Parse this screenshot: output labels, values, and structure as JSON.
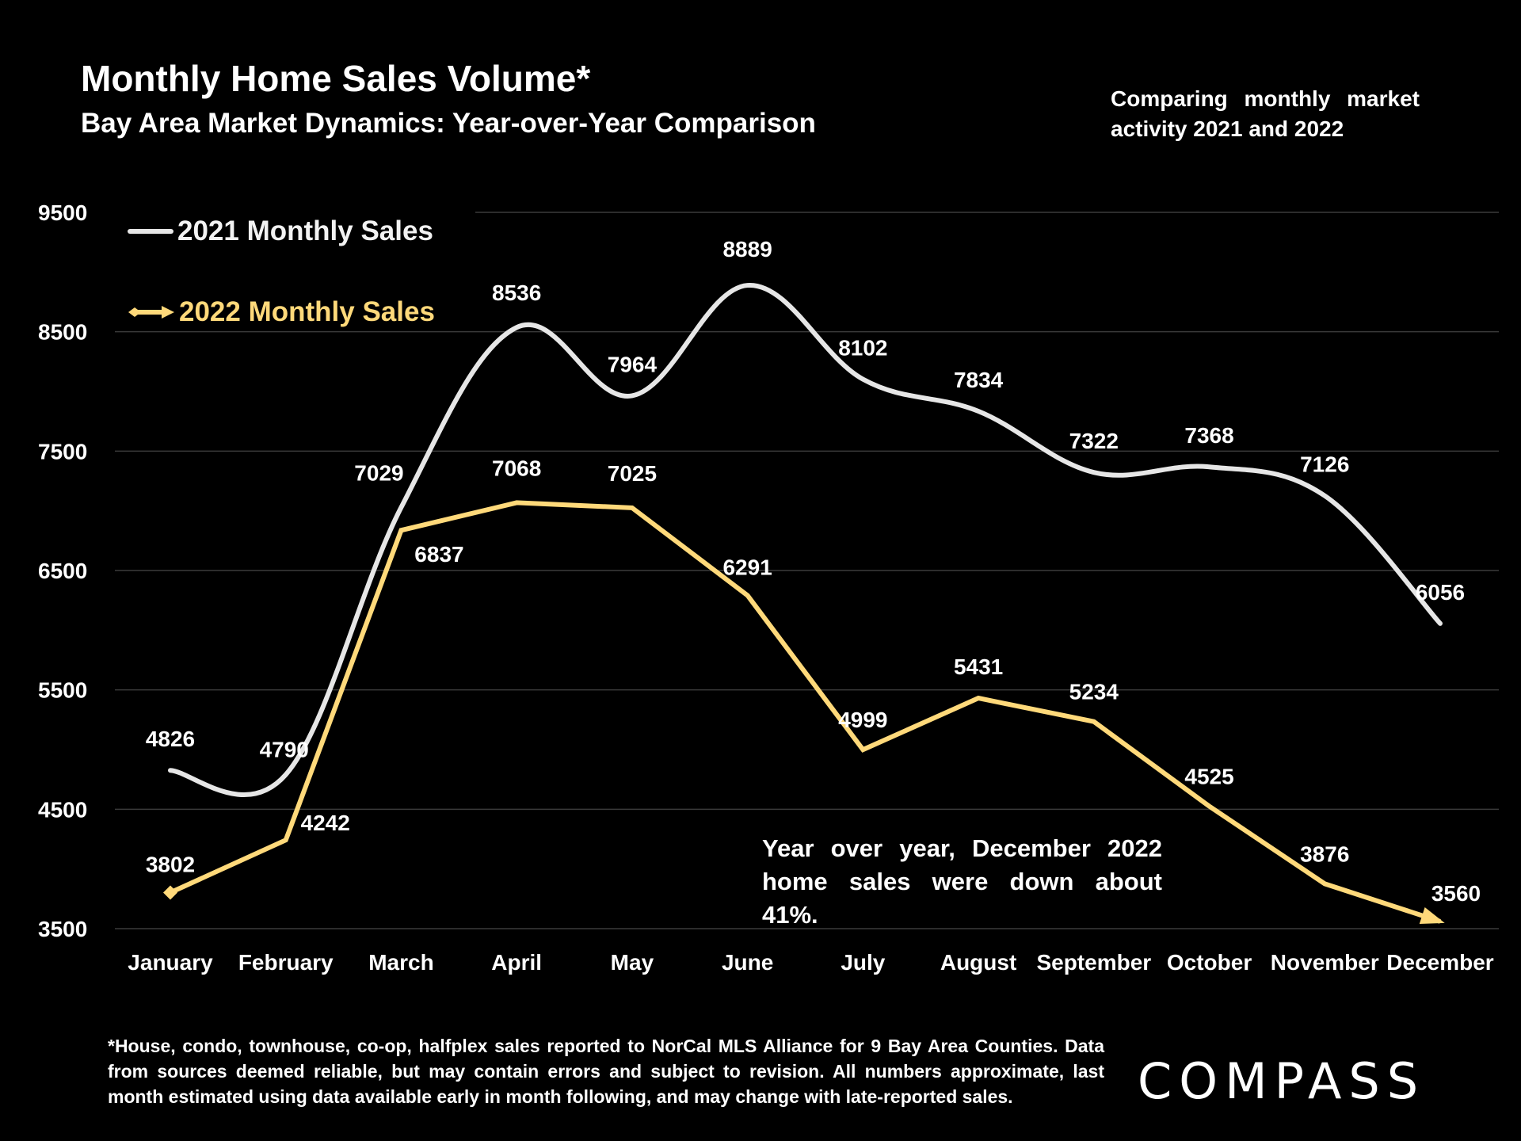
{
  "title": "Monthly Home Sales Volume*",
  "subtitle": "Bay Area Market Dynamics: Year-over-Year Comparison",
  "note": "Comparing monthly market activity 2021 and 2022",
  "callout": "Year over year, December 2022 home sales were down about 41%.",
  "footnote": "*House, condo, townhouse, co-op, halfplex sales reported to NorCal MLS Alliance for 9 Bay Area Counties. Data from sources deemed reliable, but may contain errors and subject to revision. All numbers approximate, last month estimated using data available early in month following, and may change with late-reported sales.",
  "logo": "COMPASS",
  "colors": {
    "series_2021": "#e6e6e6",
    "series_2022": "#ffd97a",
    "grid": "#3a3a3a",
    "background": "#000000"
  },
  "chart_data": {
    "type": "line",
    "categories": [
      "January",
      "February",
      "March",
      "April",
      "May",
      "June",
      "July",
      "August",
      "September",
      "October",
      "November",
      "December"
    ],
    "yticks": [
      3500,
      4500,
      5500,
      6500,
      7500,
      8500,
      9500
    ],
    "ylim": [
      3500,
      9500
    ],
    "grid": true,
    "legend": "top-left",
    "series": [
      {
        "name": "2021 Monthly Sales",
        "values": [
          4826,
          4790,
          7029,
          8536,
          7964,
          8889,
          8102,
          7834,
          7322,
          7368,
          7126,
          6056
        ]
      },
      {
        "name": "2022 Monthly Sales",
        "values": [
          3802,
          4242,
          6837,
          7068,
          7025,
          6291,
          4999,
          5431,
          5234,
          4525,
          3876,
          3560
        ]
      }
    ]
  }
}
